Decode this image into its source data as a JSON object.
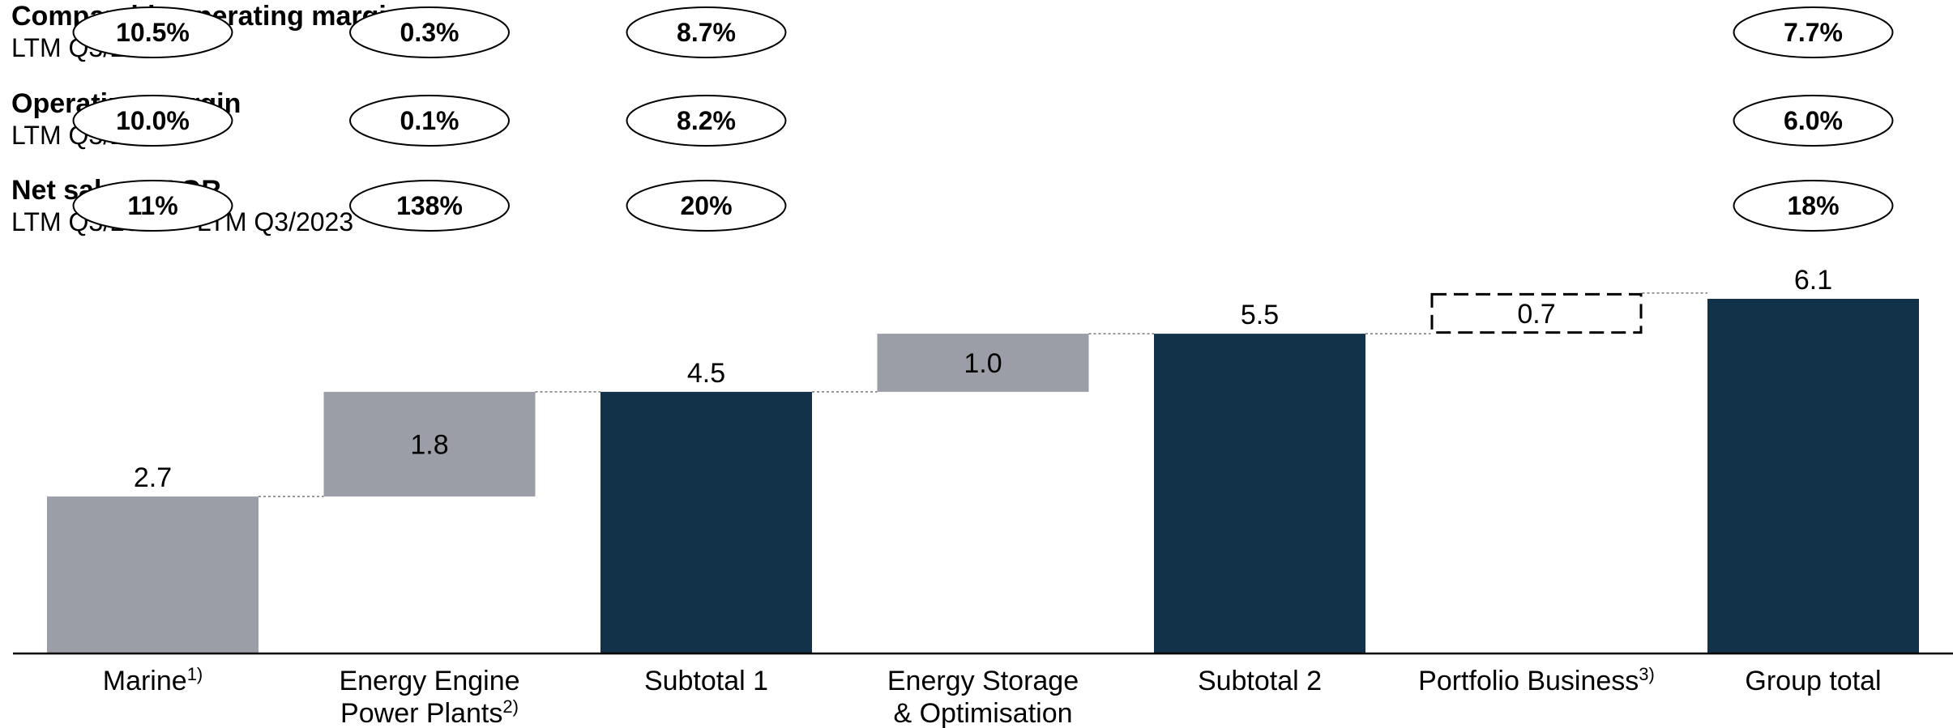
{
  "metrics": [
    {
      "title": "Comparable operating margin",
      "subtitle": "LTM Q3/2023",
      "values": [
        "10.5%",
        "0.3%",
        "8.7%",
        "",
        "",
        "",
        "7.7%"
      ]
    },
    {
      "title": "Operating margin",
      "subtitle": "LTM Q3/2023",
      "values": [
        "10.0%",
        "0.1%",
        "8.2%",
        "",
        "",
        "",
        "6.0%"
      ]
    },
    {
      "title": "Net sales CAGR",
      "subtitle": "LTM Q3/2021 – LTM Q3/2023",
      "values": [
        "11%",
        "138%",
        "20%",
        "",
        "",
        "",
        "18%"
      ]
    }
  ],
  "chart_data": {
    "type": "bar",
    "subtype": "waterfall",
    "categories": [
      {
        "label": "Marine",
        "sup": "1)"
      },
      {
        "label": "Energy Engine\nPower Plants",
        "sup": "2)"
      },
      {
        "label": "Subtotal 1",
        "sup": ""
      },
      {
        "label": "Energy Storage\n& Optimisation",
        "sup": ""
      },
      {
        "label": "Subtotal 2",
        "sup": ""
      },
      {
        "label": "Portfolio Business",
        "sup": "3)"
      },
      {
        "label": "Group total",
        "sup": ""
      }
    ],
    "bars": [
      {
        "start": 0,
        "value": 2.7,
        "label": "2.7",
        "kind": "increment",
        "label_pos": "above"
      },
      {
        "start": 2.7,
        "value": 1.8,
        "label": "1.8",
        "kind": "increment",
        "label_pos": "inside"
      },
      {
        "start": 0,
        "value": 4.5,
        "label": "4.5",
        "kind": "total",
        "label_pos": "above"
      },
      {
        "start": 4.5,
        "value": 1.0,
        "label": "1.0",
        "kind": "increment",
        "label_pos": "inside"
      },
      {
        "start": 0,
        "value": 5.5,
        "label": "5.5",
        "kind": "total",
        "label_pos": "above"
      },
      {
        "start": 5.5,
        "value": 0.7,
        "label": "0.7",
        "kind": "dashed",
        "label_pos": "inside"
      },
      {
        "start": 0,
        "value": 6.1,
        "label": "6.1",
        "kind": "total",
        "label_pos": "above"
      }
    ],
    "ylim": [
      0,
      6.1
    ],
    "colors": {
      "increment": "#9b9ea6",
      "total": "#12324a",
      "axis": "#000000",
      "connector": "#777777"
    }
  }
}
